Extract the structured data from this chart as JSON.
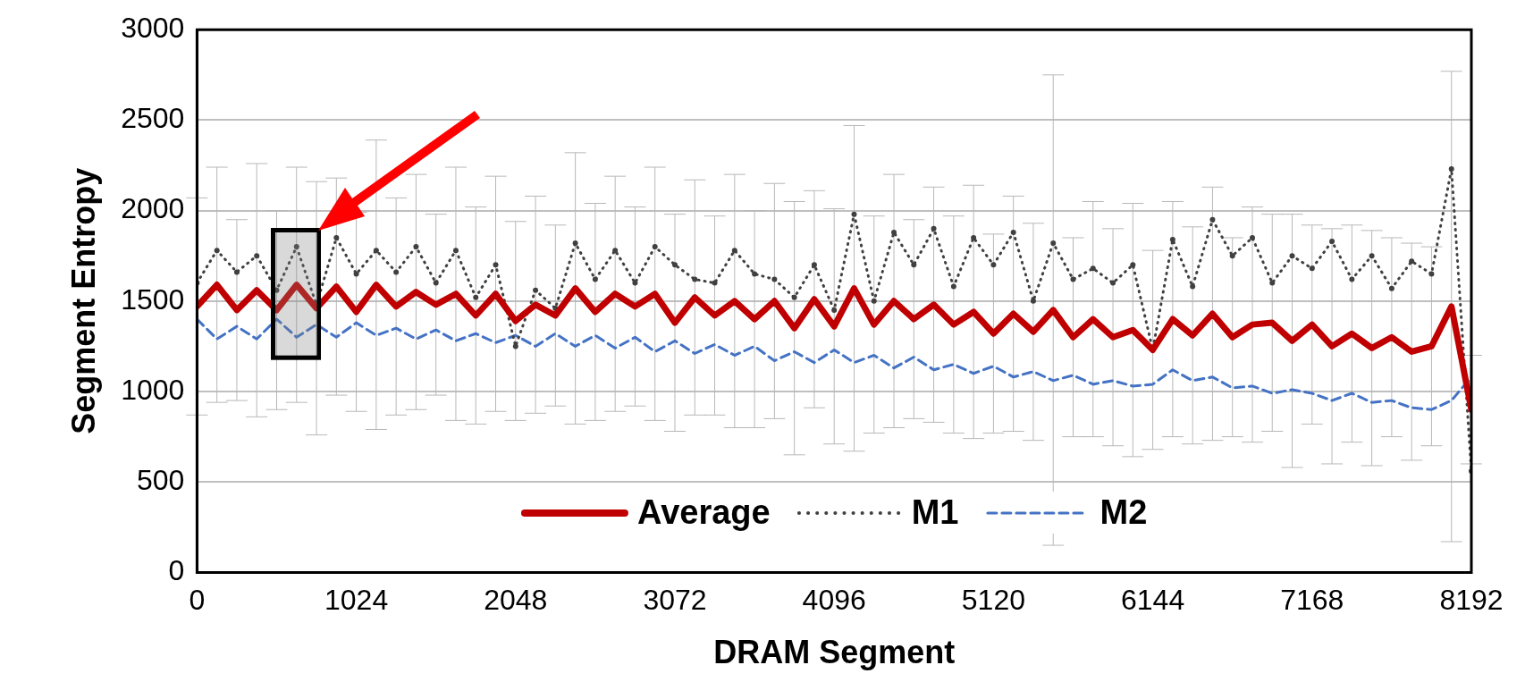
{
  "chart_data": {
    "type": "line",
    "xlabel": "DRAM Segment",
    "ylabel": "Segment Entropy",
    "x": [
      0,
      128,
      256,
      384,
      512,
      640,
      768,
      896,
      1024,
      1152,
      1280,
      1408,
      1536,
      1664,
      1792,
      1920,
      2048,
      2176,
      2304,
      2432,
      2560,
      2688,
      2816,
      2944,
      3072,
      3200,
      3328,
      3456,
      3584,
      3712,
      3840,
      3968,
      4096,
      4224,
      4352,
      4480,
      4608,
      4736,
      4864,
      4992,
      5120,
      5248,
      5376,
      5504,
      5632,
      5760,
      5888,
      6016,
      6144,
      6272,
      6400,
      6528,
      6656,
      6784,
      6912,
      7040,
      7168,
      7296,
      7424,
      7552,
      7680,
      7808,
      7936,
      8064,
      8192
    ],
    "series": [
      {
        "name": "Average",
        "color": "#c00000",
        "line_style": "solid",
        "marker": "none",
        "values": [
          1470,
          1590,
          1450,
          1560,
          1450,
          1590,
          1460,
          1580,
          1440,
          1590,
          1470,
          1550,
          1480,
          1540,
          1420,
          1540,
          1390,
          1480,
          1420,
          1570,
          1440,
          1540,
          1470,
          1540,
          1380,
          1520,
          1420,
          1500,
          1400,
          1500,
          1350,
          1510,
          1360,
          1570,
          1370,
          1500,
          1400,
          1480,
          1370,
          1440,
          1320,
          1430,
          1330,
          1450,
          1300,
          1400,
          1300,
          1340,
          1230,
          1400,
          1310,
          1430,
          1300,
          1370,
          1380,
          1280,
          1370,
          1250,
          1320,
          1240,
          1300,
          1220,
          1250,
          1470,
          900
        ],
        "errors": [
          600,
          650,
          500,
          700,
          550,
          650,
          700,
          600,
          550,
          800,
          600,
          650,
          500,
          700,
          600,
          650,
          550,
          600,
          500,
          750,
          600,
          650,
          550,
          700,
          600,
          650,
          550,
          700,
          600,
          650,
          700,
          600,
          650,
          900,
          600,
          700,
          550,
          650,
          600,
          700,
          550,
          650,
          600,
          1300,
          550,
          650,
          600,
          700,
          550,
          650,
          600,
          700,
          550,
          650,
          600,
          700,
          550,
          650,
          600,
          650,
          550,
          600,
          550,
          1300,
          300
        ]
      },
      {
        "name": "M1",
        "color": "#404040",
        "line_style": "dotted",
        "marker": "circle",
        "values": [
          1600,
          1780,
          1660,
          1750,
          1560,
          1800,
          1480,
          1850,
          1650,
          1780,
          1660,
          1800,
          1600,
          1780,
          1520,
          1700,
          1250,
          1560,
          1460,
          1820,
          1620,
          1780,
          1600,
          1800,
          1700,
          1620,
          1600,
          1780,
          1650,
          1620,
          1520,
          1700,
          1450,
          1980,
          1500,
          1880,
          1700,
          1900,
          1580,
          1850,
          1700,
          1880,
          1500,
          1820,
          1620,
          1680,
          1600,
          1700,
          1230,
          1840,
          1580,
          1950,
          1750,
          1850,
          1600,
          1750,
          1680,
          1830,
          1620,
          1750,
          1570,
          1720,
          1650,
          2230,
          560
        ]
      },
      {
        "name": "M2",
        "color": "#4472c4",
        "line_style": "dashed",
        "marker": "none",
        "values": [
          1400,
          1290,
          1360,
          1290,
          1400,
          1300,
          1370,
          1300,
          1380,
          1310,
          1350,
          1290,
          1340,
          1280,
          1320,
          1270,
          1310,
          1250,
          1320,
          1250,
          1310,
          1240,
          1300,
          1220,
          1280,
          1210,
          1260,
          1200,
          1250,
          1170,
          1220,
          1160,
          1230,
          1160,
          1200,
          1130,
          1190,
          1120,
          1150,
          1100,
          1140,
          1080,
          1110,
          1060,
          1090,
          1040,
          1060,
          1030,
          1040,
          1120,
          1060,
          1080,
          1020,
          1030,
          990,
          1010,
          990,
          950,
          990,
          940,
          950,
          910,
          900,
          950,
          1080
        ]
      }
    ],
    "xlim": [
      0,
      8192
    ],
    "xticks": [
      0,
      1024,
      2048,
      3072,
      4096,
      5120,
      6144,
      7168,
      8192
    ],
    "ylim": [
      0,
      3000
    ],
    "yticks": [
      0,
      500,
      1000,
      1500,
      2000,
      2500,
      3000
    ],
    "grid": "y",
    "legend": "bottom"
  }
}
